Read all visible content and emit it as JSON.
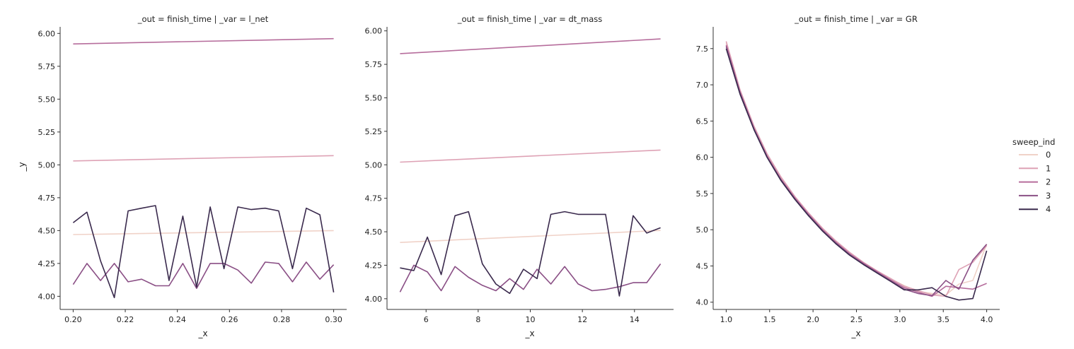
{
  "chart_data": [
    {
      "type": "line",
      "title": "_out = finish_time | _var = l_net",
      "xlabel": "_x",
      "ylabel": "_y",
      "xlim": [
        0.195,
        0.305
      ],
      "ylim": [
        3.9,
        6.05
      ],
      "xticks": [
        0.2,
        0.22,
        0.24,
        0.26,
        0.28,
        0.3
      ],
      "xtick_labels": [
        "0.20",
        "0.22",
        "0.24",
        "0.26",
        "0.28",
        "0.30"
      ],
      "yticks": [
        4.0,
        4.25,
        4.5,
        4.75,
        5.0,
        5.25,
        5.5,
        5.75,
        6.0
      ],
      "ytick_labels": [
        "4.00",
        "4.25",
        "4.50",
        "4.75",
        "5.00",
        "5.25",
        "5.50",
        "5.75",
        "6.00"
      ],
      "series": [
        {
          "name": "0",
          "x": [
            0.2,
            0.3
          ],
          "y": [
            4.47,
            4.5
          ]
        },
        {
          "name": "1",
          "x": [
            0.2,
            0.3
          ],
          "y": [
            5.03,
            5.07
          ]
        },
        {
          "name": "2",
          "x": [
            0.2,
            0.3
          ],
          "y": [
            5.92,
            5.96
          ]
        },
        {
          "name": "3",
          "x": [
            0.2,
            0.2053,
            0.2105,
            0.2158,
            0.2211,
            0.2263,
            0.2316,
            0.2368,
            0.2421,
            0.2474,
            0.2526,
            0.2579,
            0.2632,
            0.2684,
            0.2737,
            0.2789,
            0.2842,
            0.2895,
            0.2947,
            0.3
          ],
          "y": [
            4.09,
            4.25,
            4.12,
            4.25,
            4.11,
            4.13,
            4.08,
            4.08,
            4.25,
            4.06,
            4.25,
            4.25,
            4.2,
            4.1,
            4.26,
            4.25,
            4.11,
            4.26,
            4.13,
            4.24
          ]
        },
        {
          "name": "4",
          "x": [
            0.2,
            0.2053,
            0.2105,
            0.2158,
            0.2211,
            0.2263,
            0.2316,
            0.2368,
            0.2421,
            0.2474,
            0.2526,
            0.2579,
            0.2632,
            0.2684,
            0.2737,
            0.2789,
            0.2842,
            0.2895,
            0.2947,
            0.3
          ],
          "y": [
            4.56,
            4.64,
            4.27,
            3.99,
            4.65,
            4.67,
            4.69,
            4.12,
            4.61,
            4.07,
            4.68,
            4.21,
            4.68,
            4.66,
            4.67,
            4.65,
            4.21,
            4.67,
            4.62,
            4.03
          ]
        }
      ]
    },
    {
      "type": "line",
      "title": "_out = finish_time | _var = dt_mass",
      "xlabel": "_x",
      "ylabel": "",
      "xlim": [
        4.5,
        15.5
      ],
      "ylim": [
        3.92,
        6.03
      ],
      "xticks": [
        6,
        8,
        10,
        12,
        14
      ],
      "xtick_labels": [
        "6",
        "8",
        "10",
        "12",
        "14"
      ],
      "yticks": [
        4.0,
        4.25,
        4.5,
        4.75,
        5.0,
        5.25,
        5.5,
        5.75,
        6.0
      ],
      "ytick_labels": [
        "4.00",
        "4.25",
        "4.50",
        "4.75",
        "5.00",
        "5.25",
        "5.50",
        "5.75",
        "6.00"
      ],
      "series": [
        {
          "name": "0",
          "x": [
            5,
            15
          ],
          "y": [
            4.42,
            4.51
          ]
        },
        {
          "name": "1",
          "x": [
            5,
            15
          ],
          "y": [
            5.02,
            5.11
          ]
        },
        {
          "name": "2",
          "x": [
            5,
            15
          ],
          "y": [
            5.83,
            5.94
          ]
        },
        {
          "name": "3",
          "x": [
            5.0,
            5.53,
            6.05,
            6.58,
            7.11,
            7.63,
            8.16,
            8.68,
            9.21,
            9.74,
            10.26,
            10.79,
            11.32,
            11.84,
            12.37,
            12.89,
            13.42,
            13.95,
            14.47,
            15.0
          ],
          "y": [
            4.05,
            4.25,
            4.2,
            4.06,
            4.24,
            4.16,
            4.1,
            4.06,
            4.15,
            4.07,
            4.22,
            4.11,
            4.24,
            4.11,
            4.06,
            4.07,
            4.09,
            4.12,
            4.12,
            4.26
          ]
        },
        {
          "name": "4",
          "x": [
            5.0,
            5.53,
            6.05,
            6.58,
            7.11,
            7.63,
            8.16,
            8.68,
            9.21,
            9.74,
            10.26,
            10.79,
            11.32,
            11.84,
            12.37,
            12.89,
            13.42,
            13.95,
            14.47,
            15.0
          ],
          "y": [
            4.23,
            4.21,
            4.46,
            4.18,
            4.62,
            4.65,
            4.26,
            4.11,
            4.04,
            4.22,
            4.15,
            4.63,
            4.65,
            4.63,
            4.63,
            4.63,
            4.02,
            4.62,
            4.49,
            4.53
          ]
        }
      ]
    },
    {
      "type": "line",
      "title": "_out = finish_time | _var = GR",
      "xlabel": "_x",
      "ylabel": "",
      "xlim": [
        0.85,
        4.15
      ],
      "ylim": [
        3.9,
        7.8
      ],
      "xticks": [
        1.0,
        1.5,
        2.0,
        2.5,
        3.0,
        3.5,
        4.0
      ],
      "xtick_labels": [
        "1.0",
        "1.5",
        "2.0",
        "2.5",
        "3.0",
        "3.5",
        "4.0"
      ],
      "yticks": [
        4.0,
        4.5,
        5.0,
        5.5,
        6.0,
        6.5,
        7.0,
        7.5
      ],
      "ytick_labels": [
        "4.0",
        "4.5",
        "5.0",
        "5.5",
        "6.0",
        "6.5",
        "7.0",
        "7.5"
      ],
      "series": [
        {
          "name": "0",
          "x": [
            1.0,
            1.16,
            1.32,
            1.47,
            1.63,
            1.79,
            1.95,
            2.11,
            2.26,
            2.42,
            2.58,
            2.74,
            2.89,
            3.05,
            3.21,
            3.37,
            3.53,
            3.68,
            3.84,
            4.0
          ],
          "y": [
            7.58,
            6.92,
            6.42,
            6.03,
            5.72,
            5.45,
            5.22,
            5.01,
            4.84,
            4.68,
            4.55,
            4.43,
            4.32,
            4.23,
            4.15,
            4.12,
            4.1,
            4.25,
            4.3,
            4.8
          ]
        },
        {
          "name": "1",
          "x": [
            1.0,
            1.16,
            1.32,
            1.47,
            1.63,
            1.79,
            1.95,
            2.11,
            2.26,
            2.42,
            2.58,
            2.74,
            2.89,
            3.05,
            3.21,
            3.37,
            3.53,
            3.68,
            3.84,
            4.0
          ],
          "y": [
            7.6,
            6.93,
            6.43,
            6.05,
            5.73,
            5.46,
            5.23,
            5.02,
            4.85,
            4.69,
            4.55,
            4.43,
            4.33,
            4.22,
            4.16,
            4.1,
            4.08,
            4.45,
            4.55,
            4.78
          ]
        },
        {
          "name": "2",
          "x": [
            1.0,
            1.16,
            1.32,
            1.47,
            1.63,
            1.79,
            1.95,
            2.11,
            2.26,
            2.42,
            2.58,
            2.74,
            2.89,
            3.05,
            3.21,
            3.37,
            3.53,
            3.68,
            3.84,
            4.0
          ],
          "y": [
            7.55,
            6.9,
            6.4,
            6.02,
            5.7,
            5.44,
            5.21,
            5.0,
            4.83,
            4.67,
            4.54,
            4.42,
            4.31,
            4.2,
            4.14,
            4.08,
            4.22,
            4.2,
            4.18,
            4.26
          ]
        },
        {
          "name": "3",
          "x": [
            1.0,
            1.16,
            1.32,
            1.47,
            1.63,
            1.79,
            1.95,
            2.11,
            2.26,
            2.42,
            2.58,
            2.74,
            2.89,
            3.05,
            3.21,
            3.37,
            3.53,
            3.68,
            3.84,
            4.0
          ],
          "y": [
            7.53,
            6.89,
            6.39,
            6.01,
            5.69,
            5.43,
            5.2,
            4.99,
            4.82,
            4.66,
            4.53,
            4.41,
            4.3,
            4.18,
            4.12,
            4.09,
            4.3,
            4.18,
            4.58,
            4.8
          ]
        },
        {
          "name": "4",
          "x": [
            1.0,
            1.16,
            1.32,
            1.47,
            1.63,
            1.79,
            1.95,
            2.11,
            2.26,
            2.42,
            2.58,
            2.74,
            2.89,
            3.05,
            3.21,
            3.37,
            3.53,
            3.68,
            3.84,
            4.0
          ],
          "y": [
            7.5,
            6.87,
            6.38,
            6.0,
            5.68,
            5.42,
            5.19,
            4.98,
            4.81,
            4.65,
            4.52,
            4.4,
            4.29,
            4.17,
            4.17,
            4.2,
            4.08,
            4.03,
            4.05,
            4.71
          ]
        }
      ]
    }
  ],
  "legend": {
    "title": "sweep_ind",
    "placement": "right",
    "entries": [
      "0",
      "1",
      "2",
      "3",
      "4"
    ]
  },
  "colors": {
    "series": [
      "#f0d2c8",
      "#dea2b5",
      "#b66d9c",
      "#8a4f85",
      "#3a2a4d"
    ],
    "axis": "#333333"
  }
}
